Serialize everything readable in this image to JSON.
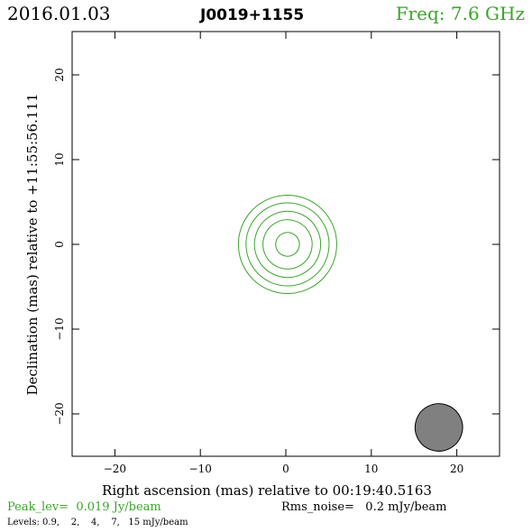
{
  "header": {
    "date": "2016.01.03",
    "source": "J0019+1155",
    "freq": "Freq: 7.6 GHz"
  },
  "chart_data": {
    "type": "contour",
    "xlabel": "Right ascension (mas) relative to 00:19:40.5163",
    "ylabel": "Declination (mas) relative to +11:55:56.111",
    "xlim": [
      25,
      -25
    ],
    "ylim": [
      -25,
      25
    ],
    "xticks": [
      20,
      10,
      0,
      -10,
      -20
    ],
    "yticks": [
      -20,
      -10,
      0,
      10,
      20
    ],
    "x_tick_labels": [
      "20",
      "10",
      "0",
      "−10",
      "−20"
    ],
    "y_tick_labels": [
      "−20",
      "−10",
      "0",
      "10",
      "20"
    ],
    "contour_levels_mJy": [
      0.9,
      2,
      4,
      7,
      15
    ],
    "contours": [
      {
        "level": 0.9,
        "cx": 0.2,
        "cy": 0.0,
        "semi_major": 5.8,
        "semi_minor": 1.05,
        "pa_deg": 18
      },
      {
        "level": 2,
        "cx": 0.2,
        "cy": 0.0,
        "semi_major": 4.9,
        "semi_minor": 0.85,
        "pa_deg": 18
      },
      {
        "level": 4,
        "cx": 0.2,
        "cy": 0.0,
        "semi_major": 3.9,
        "semi_minor": 0.65,
        "pa_deg": 18
      },
      {
        "level": 7,
        "cx": 0.2,
        "cy": 0.0,
        "semi_major": 2.9,
        "semi_minor": 0.45,
        "pa_deg": 18
      },
      {
        "level": 15,
        "cx": 0.2,
        "cy": 0.0,
        "semi_major": 1.4,
        "semi_minor": 0.25,
        "pa_deg": 18
      }
    ],
    "beam": {
      "cx": 17.9,
      "cy": -21.6,
      "semi_major": 2.8,
      "semi_minor": 0.65,
      "pa_deg": 18
    },
    "contour_color": "#3aa52a",
    "beam_color": "#808080"
  },
  "footer": {
    "peak": "Peak_lev=  0.019 Jy/beam",
    "rms": "Rms_noise=   0.2 mJy/beam",
    "levels": "Levels: 0.9,    2,    4,    7,   15 mJy/beam"
  },
  "colors": {
    "green": "#3aa52a",
    "black": "#000000"
  }
}
